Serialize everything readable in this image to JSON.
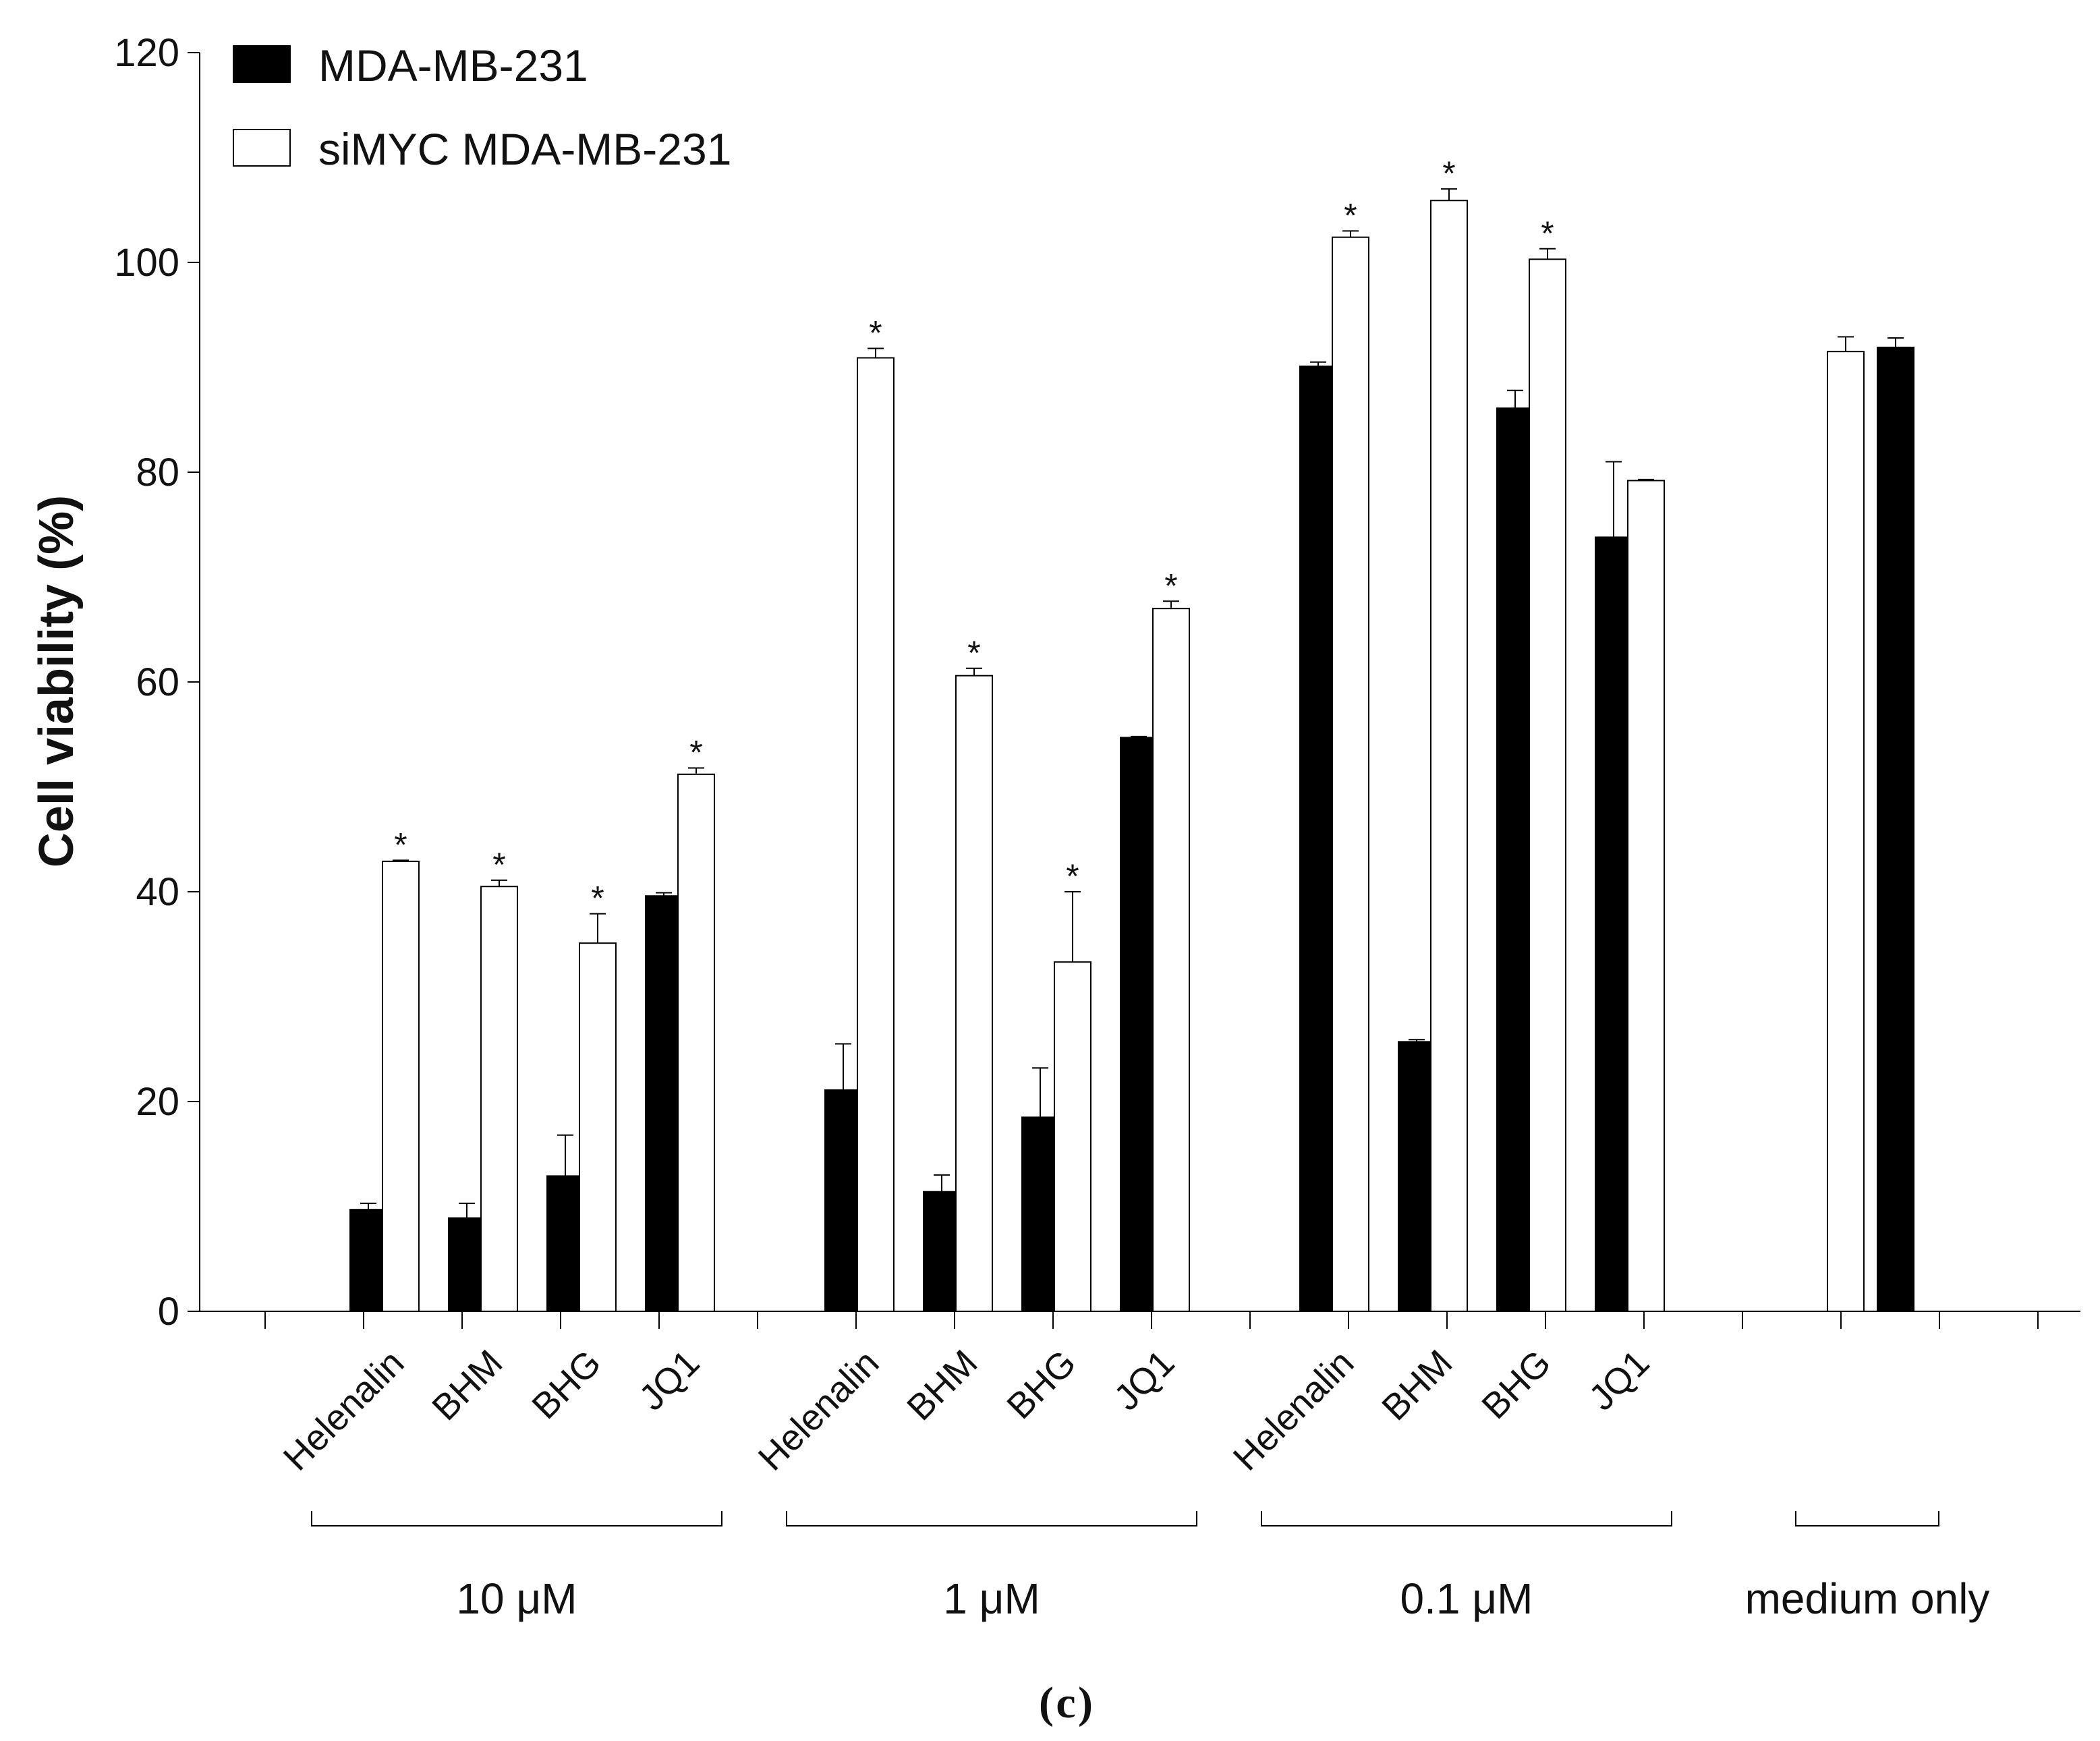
{
  "chart_data": {
    "type": "bar",
    "panel_label": "c",
    "ylabel": "Cell viability (%)",
    "xlabel": "",
    "ylim": [
      0,
      120
    ],
    "yticks": [
      0,
      20,
      40,
      60,
      80,
      100,
      120
    ],
    "grid": false,
    "legend_position": "top-left",
    "series": [
      {
        "name": "MDA-MB-231",
        "fill": "#000000"
      },
      {
        "name": "siMYC MDA-MB-231",
        "fill": "#ffffff"
      }
    ],
    "groups": [
      {
        "label": "10 μM",
        "categories": [
          {
            "name": "Helenalin",
            "bars": [
              {
                "series": 0,
                "value": 9.7,
                "error": 0.6
              },
              {
                "series": 1,
                "value": 42.9,
                "error": 0.1,
                "significant": true
              }
            ]
          },
          {
            "name": "BHM",
            "bars": [
              {
                "series": 0,
                "value": 8.9,
                "error": 1.4
              },
              {
                "series": 1,
                "value": 40.5,
                "error": 0.6,
                "significant": true
              }
            ]
          },
          {
            "name": "BHG",
            "bars": [
              {
                "series": 0,
                "value": 12.9,
                "error": 3.9
              },
              {
                "series": 1,
                "value": 35.1,
                "error": 2.8,
                "significant": true
              }
            ]
          },
          {
            "name": "JQ1",
            "bars": [
              {
                "series": 0,
                "value": 39.6,
                "error": 0.3
              },
              {
                "series": 1,
                "value": 51.2,
                "error": 0.6,
                "significant": true
              }
            ]
          }
        ]
      },
      {
        "label": "1 μM",
        "categories": [
          {
            "name": "Helenalin",
            "bars": [
              {
                "series": 0,
                "value": 21.1,
                "error": 4.4
              },
              {
                "series": 1,
                "value": 90.9,
                "error": 0.9,
                "significant": true
              }
            ]
          },
          {
            "name": "BHM",
            "bars": [
              {
                "series": 0,
                "value": 11.4,
                "error": 1.6
              },
              {
                "series": 1,
                "value": 60.6,
                "error": 0.7,
                "significant": true
              }
            ]
          },
          {
            "name": "BHG",
            "bars": [
              {
                "series": 0,
                "value": 18.5,
                "error": 4.7
              },
              {
                "series": 1,
                "value": 33.3,
                "error": 6.7,
                "significant": true
              }
            ]
          },
          {
            "name": "JQ1",
            "bars": [
              {
                "series": 0,
                "value": 54.7,
                "error": 0.1
              },
              {
                "series": 1,
                "value": 67.0,
                "error": 0.7,
                "significant": true
              }
            ]
          }
        ]
      },
      {
        "label": "0.1 μM",
        "categories": [
          {
            "name": "Helenalin",
            "bars": [
              {
                "series": 0,
                "value": 90.1,
                "error": 0.4
              },
              {
                "series": 1,
                "value": 102.4,
                "error": 0.6,
                "significant": true
              }
            ]
          },
          {
            "name": "BHM",
            "bars": [
              {
                "series": 0,
                "value": 25.7,
                "error": 0.2
              },
              {
                "series": 1,
                "value": 105.9,
                "error": 1.1,
                "significant": true
              }
            ]
          },
          {
            "name": "BHG",
            "bars": [
              {
                "series": 0,
                "value": 86.1,
                "error": 1.7
              },
              {
                "series": 1,
                "value": 100.3,
                "error": 1.0,
                "significant": true
              }
            ]
          },
          {
            "name": "JQ1",
            "bars": [
              {
                "series": 0,
                "value": 73.8,
                "error": 7.2
              },
              {
                "series": 1,
                "value": 79.2,
                "error": 0.1
              }
            ]
          }
        ]
      },
      {
        "label": "medium only",
        "categories": [
          {
            "name": "",
            "bars": [
              {
                "series": 1,
                "value": 91.5,
                "error": 1.4
              },
              {
                "series": 0,
                "value": 91.9,
                "error": 0.9
              }
            ]
          }
        ]
      }
    ],
    "significance_marker": "*"
  }
}
